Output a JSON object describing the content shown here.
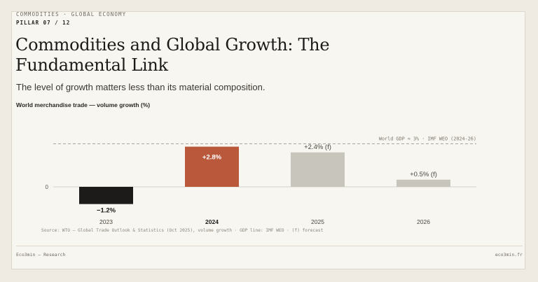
{
  "header": {
    "kicker": "COMMODITIES · GLOBAL ECONOMY",
    "pillar": "PILLAR 07 / 12",
    "title": "Commodities and Global Growth: The Fundamental Link",
    "subtitle": "The level of growth matters less than its material composition."
  },
  "chart_data": {
    "type": "bar",
    "title": "World merchandise trade — volume growth (%)",
    "categories": [
      "2023",
      "2024",
      "2025",
      "2026"
    ],
    "values": [
      -1.2,
      2.8,
      2.4,
      0.5
    ],
    "value_labels": [
      "−1.2%",
      "+2.8%",
      "+2.4% (f)",
      "+0.5% (f)"
    ],
    "bar_colors": [
      "#1c1b19",
      "#b9583a",
      "#c8c5bd",
      "#c8c5bd"
    ],
    "emphasized_category": "2024",
    "zero_label": "0",
    "reference_line": {
      "value": 3,
      "label": "World GDP ≈ 3% · IMF WEO (2024-26)"
    },
    "ylim": [
      -1.6,
      3.8
    ],
    "grid": false,
    "legend": "none"
  },
  "source": "Source: WTO — Global Trade Outlook & Statistics (Oct 2025), volume growth · GDP line: IMF WEO · (f) forecast",
  "footer": {
    "left": "Eco3min — Research",
    "right": "eco3min.fr"
  },
  "colors": {
    "background": "#f8f6f0",
    "accent": "#b9583a",
    "text": "#1b1a18"
  }
}
